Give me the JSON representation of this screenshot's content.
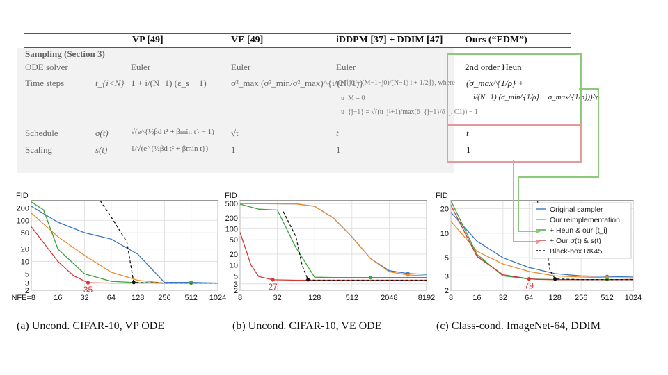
{
  "table": {
    "headers": [
      "VP [49]",
      "VE [49]",
      "iDDPM [37] + DDIM [47]",
      "Ours (“EDM”)"
    ],
    "section": "Sampling (Section 3)",
    "rows": [
      {
        "label": "ODE solver",
        "sym": "",
        "vp": "Euler",
        "ve": "Euler",
        "ddim": "Euler",
        "edm": "2nd order Heun"
      },
      {
        "label": "Time steps",
        "sym": "t_{i<N}",
        "vp": "1 + i/(N−1) (ε_s − 1)",
        "ve": "σ²_max (σ²_min/σ²_max)^{i/(N−1)}",
        "ddim": "u_{⌊j0 + (M−1−j0)/(N−1) i + 1/2⌋}, where",
        "ddim2": "u_M = 0",
        "ddim3": "u_{j−1} = √((u_j²+1)/max(ᾱ_{j−1}/ᾱ_j, C1)) − 1",
        "edm": "(σ_max^{1/ρ} +",
        "edm2": "i/(N−1) (σ_min^{1/ρ} − σ_max^{1/ρ}))^ρ"
      },
      {
        "label": "Schedule",
        "sym": "σ(t)",
        "vp": "√(e^{½βd t² + βmin t} − 1)",
        "ve": "√t",
        "ddim": "t",
        "edm": "t"
      },
      {
        "label": "Scaling",
        "sym": "s(t)",
        "vp": "1/√(e^{½βd t² + βmin t})",
        "ve": "1",
        "ddim": "1",
        "edm": "1"
      }
    ]
  },
  "colors": {
    "original": "#3a76c4",
    "reimpl": "#f08a2a",
    "heun": "#3aa33a",
    "sigma": "#d43535",
    "rk45": "#111111",
    "box_green": "#8cc97a",
    "box_red": "#e79a9a"
  },
  "chart_data": [
    {
      "type": "line",
      "ylabel": "FID",
      "x_scale": "log2",
      "y_scale": "log",
      "xticks": [
        "NFE=8",
        "16",
        "32",
        "64",
        "128",
        "256",
        "512",
        "1024"
      ],
      "yticks": [
        "200",
        "100",
        "50",
        "20",
        "10",
        "5",
        "3",
        "2"
      ],
      "xlim": [
        8,
        1024
      ],
      "ylim": [
        2,
        300
      ],
      "annotation": "35",
      "series": [
        {
          "name": "Original sampler",
          "x": [
            8,
            16,
            32,
            64,
            128,
            256,
            512,
            1024
          ],
          "y": [
            220,
            90,
            50,
            35,
            15,
            3.1,
            3.1,
            3.0
          ]
        },
        {
          "name": "Our reimplementation",
          "x": [
            8,
            16,
            32,
            64,
            128,
            256,
            512,
            1024
          ],
          "y": [
            150,
            40,
            14,
            5.5,
            3.5,
            3.0,
            3.0,
            3.0
          ]
        },
        {
          "name": "+ Heun & our {t_i}",
          "x": [
            8,
            11,
            16,
            32,
            64,
            128,
            256,
            512,
            1024
          ],
          "y": [
            280,
            180,
            20,
            5,
            3.3,
            3.05,
            3.0,
            3.0,
            3.0
          ]
        },
        {
          "name": "+ Our σ(t) & s(t)",
          "x": [
            8,
            16,
            24,
            35,
            64,
            128,
            256,
            512,
            1024
          ],
          "y": [
            70,
            10,
            4.5,
            3.05,
            3.0,
            3.0,
            3.0,
            3.0,
            3.0
          ]
        },
        {
          "name": "Black-box RK45",
          "x": [
            48,
            64,
            96,
            115,
            256,
            1024
          ],
          "y": [
            300,
            120,
            30,
            3.1,
            3.0,
            3.0
          ]
        }
      ]
    },
    {
      "type": "line",
      "ylabel": "FID",
      "x_scale": "log2",
      "y_scale": "log",
      "xticks": [
        "8",
        "32",
        "128",
        "512",
        "2048",
        "8192"
      ],
      "yticks": [
        "500",
        "200",
        "100",
        "50",
        "20",
        "10",
        "5",
        "3",
        "2"
      ],
      "xlim": [
        8,
        8192
      ],
      "ylim": [
        2,
        600
      ],
      "annotation": "27",
      "series": [
        {
          "name": "Original sampler",
          "x": [
            8,
            64,
            128,
            256,
            512,
            1024,
            2048,
            4096,
            8192
          ],
          "y": [
            500,
            490,
            420,
            200,
            60,
            15,
            7,
            5.8,
            5.5
          ]
        },
        {
          "name": "Our reimplementation",
          "x": [
            8,
            64,
            128,
            256,
            512,
            1024,
            2048,
            4096,
            8192
          ],
          "y": [
            500,
            490,
            420,
            200,
            60,
            15,
            6.5,
            5.3,
            5.0
          ]
        },
        {
          "name": "+ Heun & our {t_i}",
          "x": [
            8,
            16,
            32,
            64,
            128,
            256,
            1024,
            8192
          ],
          "y": [
            480,
            350,
            330,
            30,
            4.6,
            4.5,
            4.5,
            4.5
          ]
        },
        {
          "name": "+ Our σ(t) & s(t)",
          "x": [
            8,
            12,
            16,
            27,
            64,
            128,
            1024,
            8192
          ],
          "y": [
            80,
            10,
            4.8,
            3.9,
            3.8,
            3.8,
            3.8,
            3.8
          ]
        },
        {
          "name": "Black-box RK45",
          "x": [
            40,
            64,
            80,
            100,
            128,
            8192
          ],
          "y": [
            300,
            60,
            10,
            3.9,
            3.8,
            3.8
          ]
        }
      ]
    },
    {
      "type": "line",
      "ylabel": "FID",
      "x_scale": "log2",
      "y_scale": "log",
      "xticks": [
        "8",
        "16",
        "32",
        "64",
        "128",
        "256",
        "512",
        "1024"
      ],
      "yticks": [
        "20",
        "10",
        "5",
        "3",
        "2"
      ],
      "xlim": [
        8,
        1024
      ],
      "ylim": [
        2,
        25
      ],
      "annotation": "79",
      "legend": "top-right",
      "series": [
        {
          "name": "Original sampler",
          "x": [
            8,
            16,
            32,
            64,
            128,
            256,
            512,
            1024
          ],
          "y": [
            18,
            8,
            5,
            3.8,
            3.2,
            3.0,
            2.95,
            2.9
          ]
        },
        {
          "name": "Our reimplementation",
          "x": [
            8,
            16,
            32,
            64,
            128,
            256,
            512,
            1024
          ],
          "y": [
            14,
            6,
            4.2,
            3.4,
            3.0,
            2.9,
            2.85,
            2.8
          ]
        },
        {
          "name": "+ Heun & our {t_i}",
          "x": [
            8,
            16,
            32,
            64,
            128,
            256,
            512,
            1024
          ],
          "y": [
            25,
            5.5,
            3.0,
            2.75,
            2.7,
            2.7,
            2.7,
            2.7
          ]
        },
        {
          "name": "+ Our σ(t) & s(t)",
          "x": [
            8,
            16,
            32,
            64,
            79,
            128,
            256,
            512,
            1024
          ],
          "y": [
            22,
            5.2,
            3.1,
            2.76,
            2.72,
            2.7,
            2.7,
            2.7,
            2.7
          ]
        },
        {
          "name": "Black-box RK45",
          "x": [
            80,
            96,
            112,
            128,
            256,
            1024
          ],
          "y": [
            25,
            10,
            3.5,
            2.75,
            2.7,
            2.7
          ]
        }
      ]
    }
  ],
  "captions": [
    "(a) Uncond. CIFAR-10, VP ODE",
    "(b) Uncond. CIFAR-10, VE ODE",
    "(c) Class-cond. ImageNet-64, DDIM"
  ]
}
